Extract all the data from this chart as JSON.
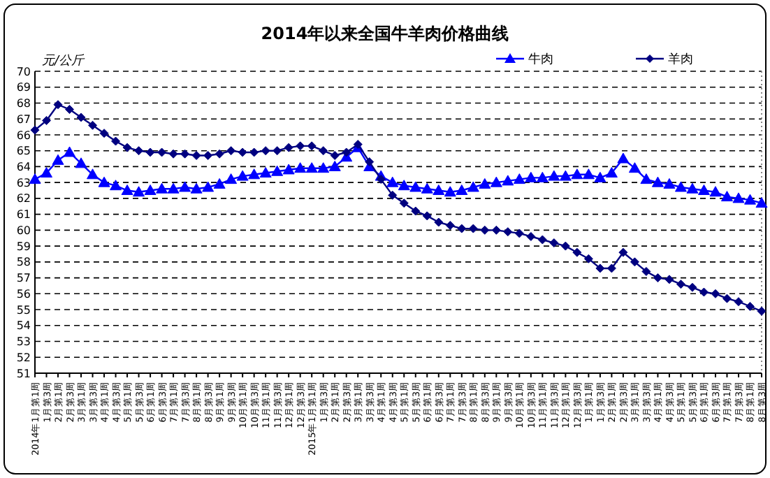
{
  "chart_data": {
    "type": "line",
    "title": "2014年以来全国牛羊肉价格曲线",
    "ylabel": "元/公斤",
    "categories": [
      "2014年1月第1周",
      "1月第3周",
      "2月第1周",
      "2月第3周",
      "3月第1周",
      "3月第3周",
      "4月第1周",
      "4月第3周",
      "5月第1周",
      "5月第3周",
      "6月第1周",
      "6月第3周",
      "7月第1周",
      "7月第3周",
      "8月第1周",
      "8月第3周",
      "9月第1周",
      "9月第3周",
      "10月第1周",
      "10月第3周",
      "11月第1周",
      "11月第3周",
      "12月第1周",
      "12月第3周",
      "2015年1月第1周",
      "1月第3周",
      "2月第1周",
      "2月第3周",
      "3月第1周",
      "3月第3周",
      "4月第1周",
      "4月第3周",
      "5月第1周",
      "5月第3周",
      "6月第1周",
      "6月第3周",
      "7月第1周",
      "7月第3周",
      "8月第1周",
      "8月第3周",
      "9月第1周",
      "9月第3周",
      "10月第1周",
      "10月第3周",
      "11月第1周",
      "11月第3周",
      "12月第1周",
      "12月第3周",
      "1月第1周",
      "1月第3周",
      "2月第1周",
      "2月第3周",
      "3月第1周",
      "3月第3周",
      "4月第1周",
      "4月第3周",
      "5月第1周",
      "5月第3周",
      "6月第1周",
      "6月第3周",
      "7月第1周",
      "7月第3周",
      "8月第1周",
      "8月第3周"
    ],
    "series": [
      {
        "name": "牛肉",
        "color": "#0000ff",
        "marker": "triangle",
        "values": [
          63.2,
          63.6,
          64.4,
          64.9,
          64.2,
          63.5,
          63.0,
          62.8,
          62.5,
          62.4,
          62.5,
          62.6,
          62.6,
          62.7,
          62.6,
          62.7,
          62.9,
          63.2,
          63.4,
          63.5,
          63.6,
          63.7,
          63.8,
          63.9,
          63.9,
          63.9,
          64.0,
          64.6,
          65.2,
          64.0,
          63.4,
          63.0,
          62.8,
          62.7,
          62.6,
          62.5,
          62.4,
          62.5,
          62.7,
          62.9,
          63.0,
          63.1,
          63.2,
          63.3,
          63.3,
          63.4,
          63.4,
          63.5,
          63.5,
          63.3,
          63.6,
          64.5,
          63.9,
          63.2,
          63.0,
          62.9,
          62.7,
          62.6,
          62.5,
          62.4,
          62.1,
          62.0,
          61.9,
          61.7
        ]
      },
      {
        "name": "羊肉",
        "color": "#000080",
        "marker": "diamond",
        "values": [
          66.3,
          66.9,
          67.9,
          67.6,
          67.1,
          66.6,
          66.1,
          65.6,
          65.2,
          65.0,
          64.9,
          64.9,
          64.8,
          64.8,
          64.7,
          64.7,
          64.8,
          65.0,
          64.9,
          64.9,
          65.0,
          65.0,
          65.2,
          65.3,
          65.3,
          65.0,
          64.7,
          64.9,
          65.4,
          64.3,
          63.2,
          62.2,
          61.7,
          61.2,
          60.9,
          60.5,
          60.3,
          60.1,
          60.1,
          60.0,
          60.0,
          59.9,
          59.8,
          59.6,
          59.4,
          59.2,
          59.0,
          58.6,
          58.2,
          57.6,
          57.6,
          58.6,
          58.0,
          57.4,
          57.0,
          56.9,
          56.6,
          56.4,
          56.1,
          56.0,
          55.7,
          55.5,
          55.2,
          54.9
        ]
      }
    ],
    "ylim": [
      51,
      70
    ],
    "yticks": [
      51,
      52,
      53,
      54,
      55,
      56,
      57,
      58,
      59,
      60,
      61,
      62,
      63,
      64,
      65,
      66,
      67,
      68,
      69,
      70
    ],
    "grid": "y",
    "line_style": "solid",
    "legend": "top right"
  }
}
